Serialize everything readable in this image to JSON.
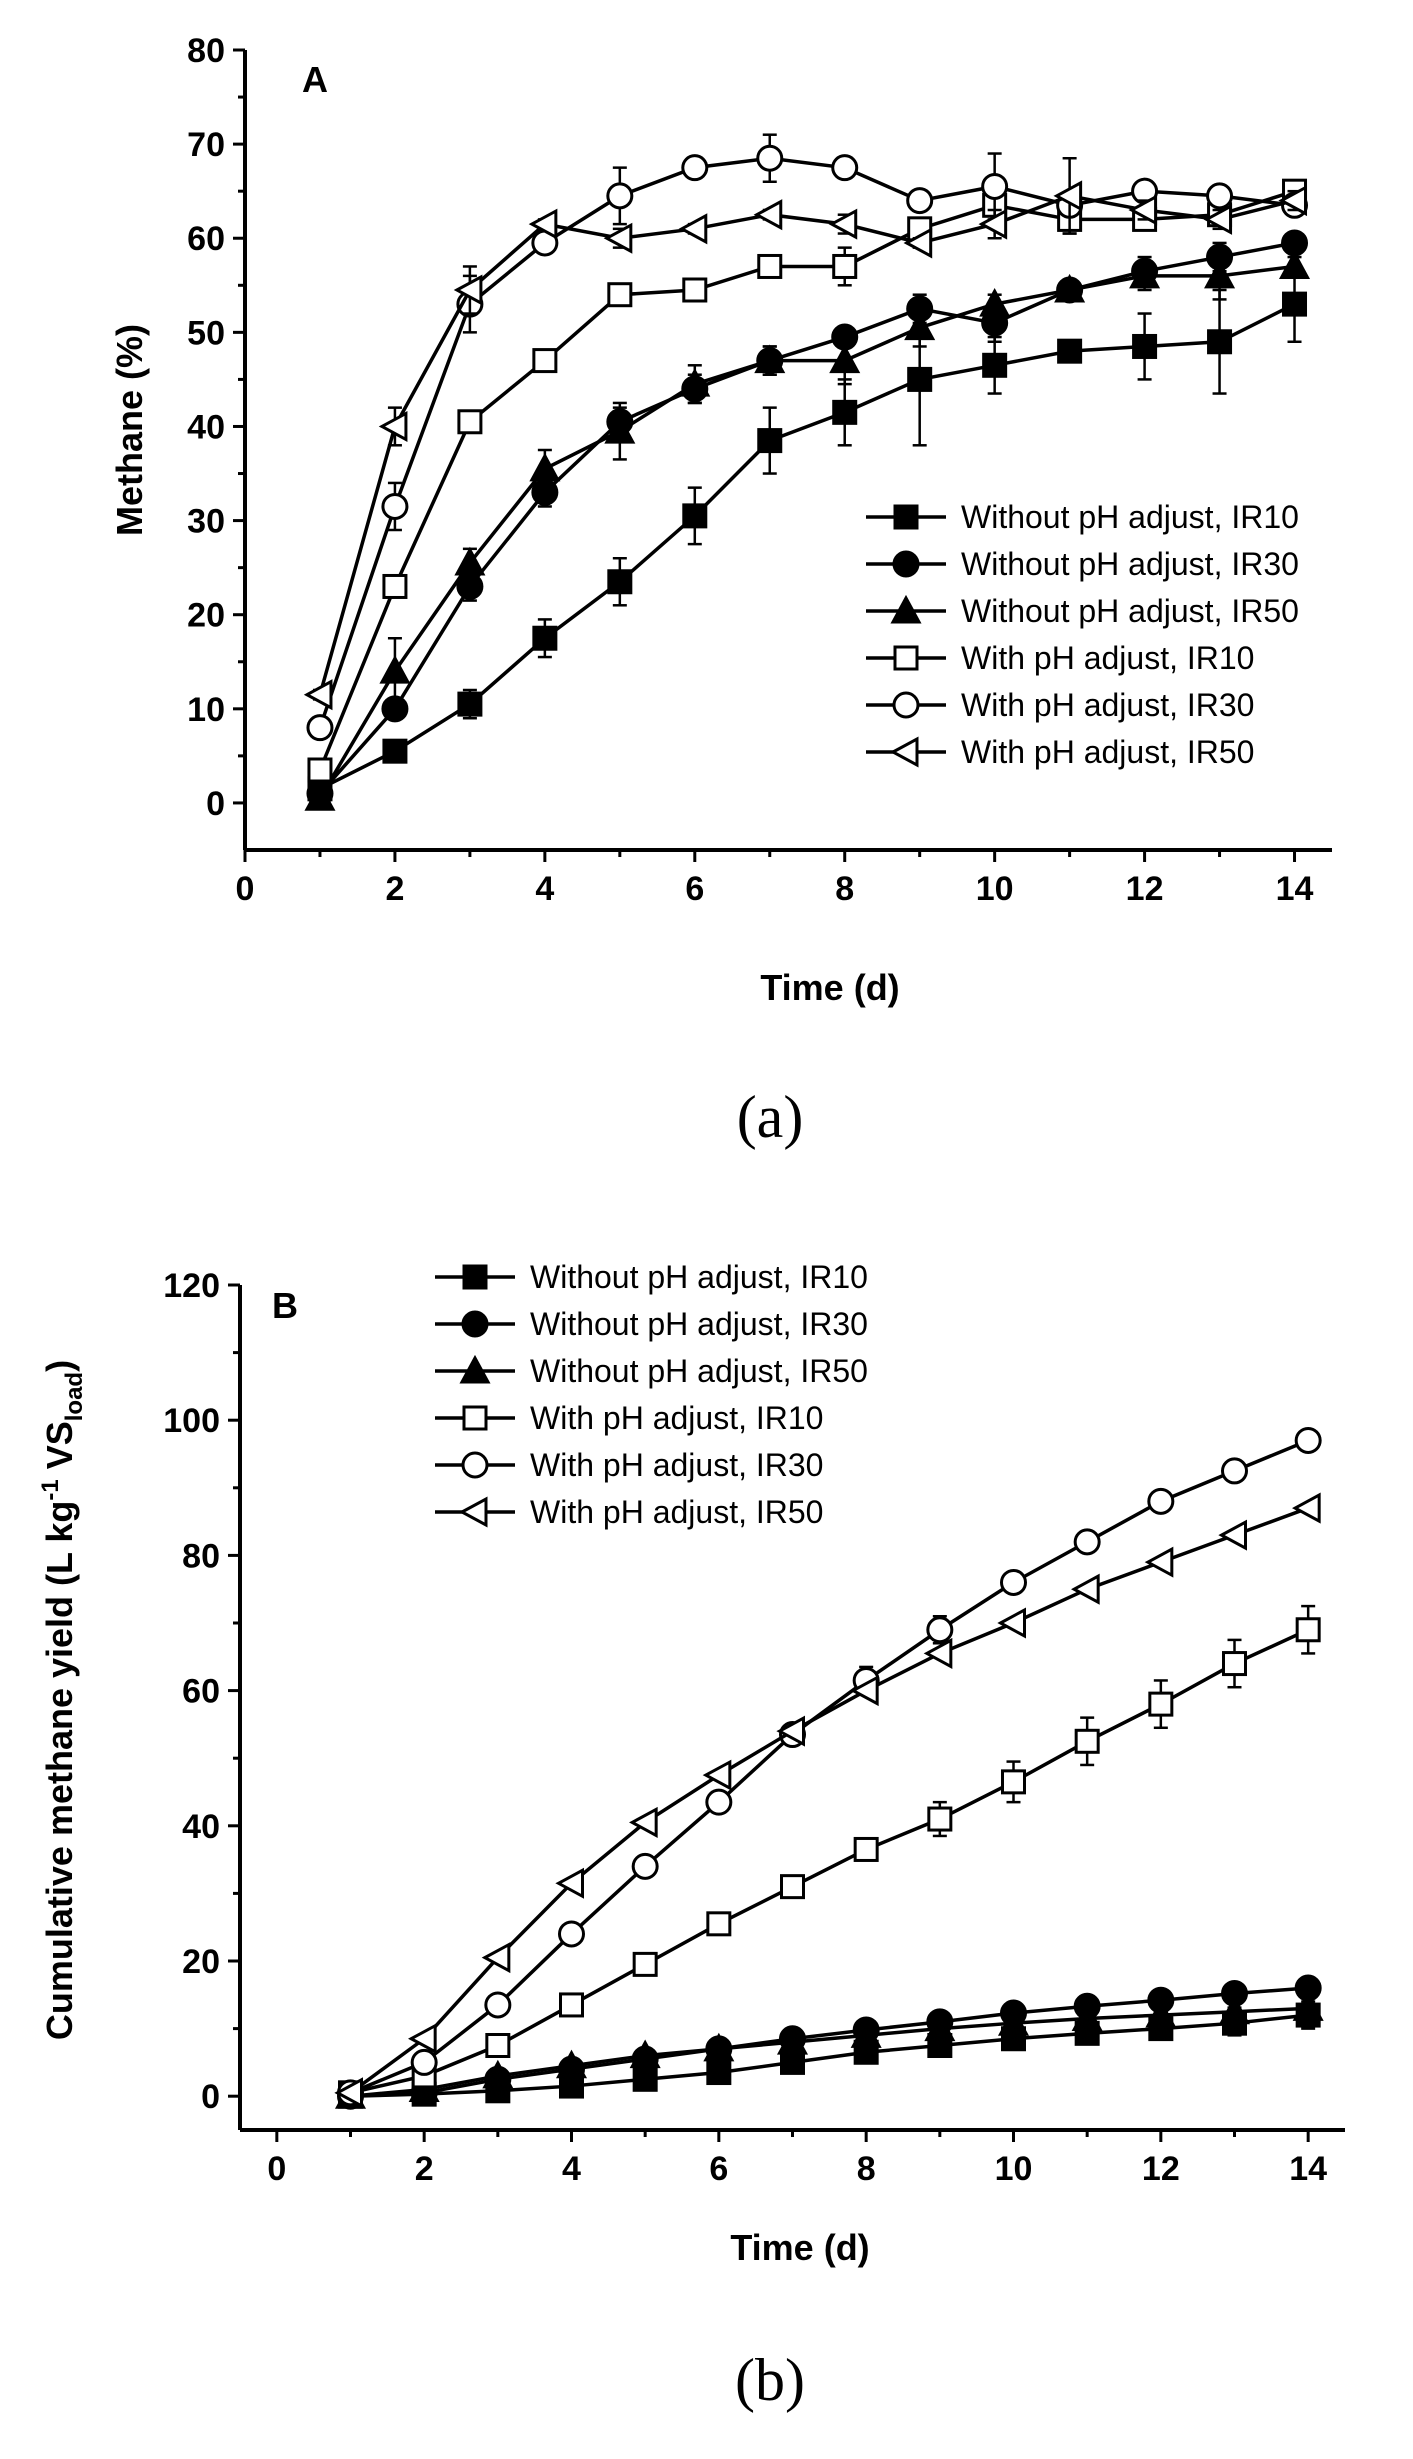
{
  "chart_data": [
    {
      "panel": "A",
      "caption": "(a)",
      "type": "line",
      "xlabel": "Time (d)",
      "ylabel": "Methane (%)",
      "xlim": [
        0,
        14.5
      ],
      "ylim": [
        -5,
        80
      ],
      "xticks": [
        "0",
        "2",
        "4",
        "6",
        "8",
        "10",
        "12",
        "14"
      ],
      "yticks": [
        "0",
        "10",
        "20",
        "30",
        "40",
        "50",
        "60",
        "70",
        "80"
      ],
      "legend_position": "bottom-right",
      "x": [
        1,
        2,
        3,
        4,
        5,
        6,
        7,
        8,
        9,
        10,
        11,
        12,
        13,
        14
      ],
      "series": [
        {
          "name": "Without pH adjust, IR10",
          "marker": "square",
          "filled": true,
          "values": [
            1.5,
            5.5,
            10.5,
            17.5,
            23.5,
            30.5,
            38.5,
            41.5,
            45,
            46.5,
            48,
            48.5,
            49,
            53
          ],
          "errors": [
            0.5,
            0.8,
            1.5,
            2,
            2.5,
            3,
            3.5,
            3.5,
            7,
            3,
            1,
            3.5,
            5.5,
            4
          ]
        },
        {
          "name": "Without pH adjust, IR30",
          "marker": "circle",
          "filled": true,
          "values": [
            1,
            10,
            23,
            33,
            40.5,
            44,
            47,
            49.5,
            52.5,
            51,
            54.5,
            56.5,
            58,
            59.5
          ],
          "errors": [
            0.5,
            1,
            1.5,
            1.5,
            1.5,
            1.5,
            1.5,
            1,
            1.5,
            2,
            1,
            1.5,
            1.5,
            1
          ]
        },
        {
          "name": "Without pH adjust, IR50",
          "marker": "triangle",
          "filled": true,
          "values": [
            0.5,
            14,
            25.5,
            35.5,
            39.5,
            44.5,
            47,
            47,
            50.5,
            53,
            54.5,
            56,
            56,
            57
          ],
          "errors": [
            0.5,
            3.5,
            1.5,
            2,
            3,
            2,
            1.5,
            2.5,
            2,
            1,
            1,
            1.5,
            2.5,
            1
          ]
        },
        {
          "name": "With pH adjust, IR10",
          "marker": "square",
          "filled": false,
          "values": [
            3.5,
            23,
            40.5,
            47,
            54,
            54.5,
            57,
            57,
            61,
            63.5,
            62,
            62,
            62.5,
            65
          ],
          "errors": [
            0.5,
            0.5,
            0.5,
            0.5,
            0.5,
            0.5,
            0.5,
            2,
            1,
            1,
            1.5,
            1,
            1,
            1
          ]
        },
        {
          "name": "With pH adjust, IR30",
          "marker": "circle",
          "filled": false,
          "values": [
            8,
            31.5,
            53,
            59.5,
            64.5,
            67.5,
            68.5,
            67.5,
            64,
            65.5,
            63.5,
            65,
            64.5,
            63.5
          ],
          "errors": [
            0.5,
            2.5,
            3,
            0.5,
            3,
            0.5,
            2.5,
            0.5,
            0.5,
            3.5,
            1,
            1,
            1,
            1
          ]
        },
        {
          "name": "With pH adjust, IR50",
          "marker": "left-triangle",
          "filled": false,
          "values": [
            11.5,
            40,
            54.5,
            61.5,
            60,
            61,
            62.5,
            61.5,
            59.5,
            61.5,
            64.5,
            63,
            62,
            64
          ],
          "errors": [
            0.5,
            2,
            2.5,
            0.5,
            1,
            0.5,
            0.5,
            1,
            0.5,
            1.5,
            4,
            1,
            1,
            1
          ]
        }
      ]
    },
    {
      "panel": "B",
      "caption": "(b)",
      "type": "line",
      "xlabel": "Time (d)",
      "ylabel": "Cumulative methane yield (L kg",
      "ylabel_sup": "-1",
      "ylabel_mid": " VS",
      "ylabel_sub": "load",
      "ylabel_end": ")",
      "xlim": [
        -0.5,
        14.5
      ],
      "ylim": [
        -5,
        120
      ],
      "xticks": [
        "0",
        "2",
        "4",
        "6",
        "8",
        "10",
        "12",
        "14"
      ],
      "yticks": [
        "0",
        "20",
        "40",
        "60",
        "80",
        "100",
        "120"
      ],
      "legend_position": "top-left",
      "x": [
        1,
        2,
        3,
        4,
        5,
        6,
        7,
        8,
        9,
        10,
        11,
        12,
        13,
        14
      ],
      "series": [
        {
          "name": "Without pH adjust, IR10",
          "marker": "square",
          "filled": true,
          "values": [
            0,
            0.3,
            0.8,
            1.5,
            2.5,
            3.5,
            5,
            6.5,
            7.5,
            8.5,
            9.3,
            10,
            10.8,
            12
          ],
          "errors": [
            0,
            0,
            0.2,
            0.3,
            0.4,
            0.5,
            0.6,
            0.8,
            1,
            1.2,
            1.3,
            1.5,
            1.8,
            2
          ]
        },
        {
          "name": "Without pH adjust, IR30",
          "marker": "circle",
          "filled": true,
          "values": [
            0,
            0.5,
            2.5,
            4,
            5.5,
            7,
            8.5,
            9.8,
            11,
            12.3,
            13.3,
            14.2,
            15.2,
            16
          ],
          "errors": [
            0,
            0,
            0.2,
            0.3,
            0.4,
            0.5,
            0.5,
            0.6,
            0.6,
            0.7,
            0.7,
            0.8,
            0.8,
            0.8
          ]
        },
        {
          "name": "Without pH adjust, IR50",
          "marker": "triangle",
          "filled": true,
          "values": [
            0,
            1,
            3,
            4.5,
            6,
            7,
            8,
            9,
            10,
            10.8,
            11.5,
            12,
            12.5,
            13
          ],
          "errors": [
            0,
            0.1,
            0.2,
            0.3,
            0.4,
            0.4,
            0.5,
            0.5,
            0.5,
            0.6,
            0.6,
            0.6,
            0.6,
            0.6
          ]
        },
        {
          "name": "With pH adjust, IR10",
          "marker": "square",
          "filled": false,
          "values": [
            0.5,
            3,
            7.5,
            13.5,
            19.5,
            25.5,
            31,
            36.5,
            41,
            46.5,
            52.5,
            58,
            64,
            69
          ],
          "errors": [
            0,
            0.3,
            0.5,
            0.8,
            1,
            1,
            1,
            1.5,
            2.5,
            3,
            3.5,
            3.5,
            3.5,
            3.5
          ]
        },
        {
          "name": "With pH adjust, IR30",
          "marker": "circle",
          "filled": false,
          "values": [
            0.5,
            5,
            13.5,
            24,
            34,
            43.5,
            53.5,
            61.5,
            69,
            76,
            82,
            88,
            92.5,
            97
          ],
          "errors": [
            0,
            0.3,
            0.5,
            0.8,
            1,
            1.5,
            1.5,
            2,
            2,
            1.5,
            1.5,
            1.5,
            1.5,
            1.5
          ]
        },
        {
          "name": "With pH adjust, IR50",
          "marker": "left-triangle",
          "filled": false,
          "values": [
            0.5,
            8.5,
            20.5,
            31.5,
            40.5,
            47.5,
            54,
            60,
            65.5,
            70,
            75,
            79,
            83,
            87
          ],
          "errors": [
            0,
            0.3,
            0.5,
            0.5,
            0.5,
            0.5,
            0.5,
            0.5,
            0.5,
            0.5,
            0.5,
            0.5,
            0.5,
            0.5
          ]
        }
      ]
    }
  ],
  "colors": {
    "ink": "#000000",
    "background": "#ffffff"
  }
}
